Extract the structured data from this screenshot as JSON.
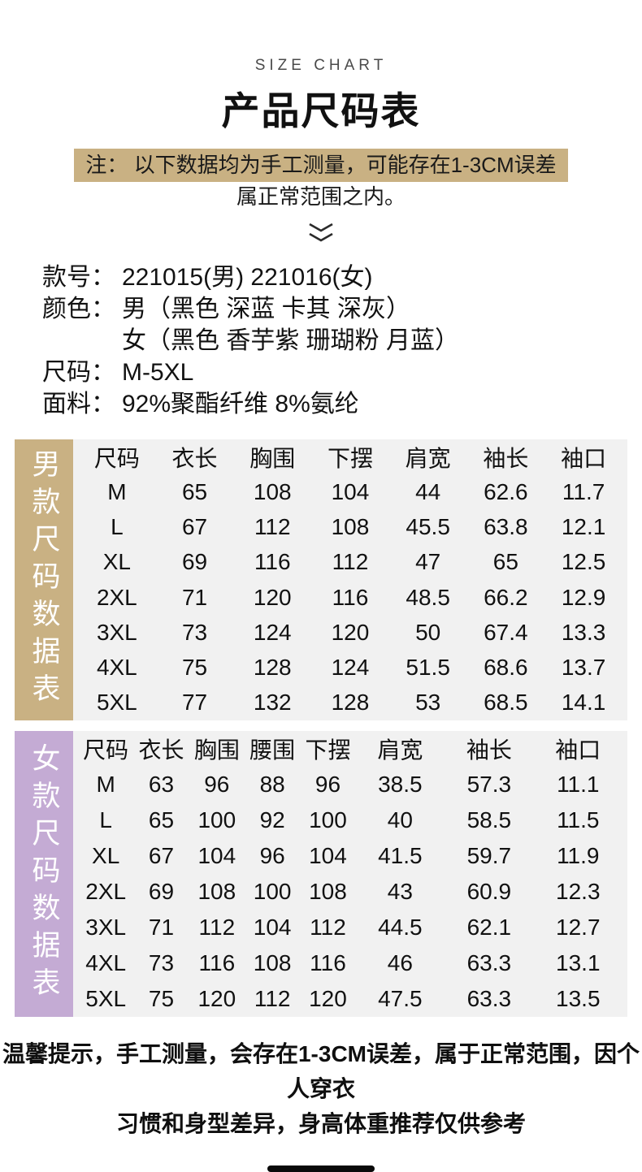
{
  "header": {
    "eyebrow": "SIZE CHART",
    "title": "产品尺码表",
    "note_line1": "注： 以下数据均为手工测量，可能存在1-3CM误差",
    "note_line2": "属正常范围之内。"
  },
  "product_info": {
    "lines": [
      {
        "label": "款号：",
        "value": "221015(男) 221016(女)"
      },
      {
        "label": "颜色：",
        "value": "男（黑色 深蓝 卡其 深灰）"
      },
      {
        "label": "",
        "value": "女（黑色 香芋紫 珊瑚粉 月蓝）"
      },
      {
        "label": "尺码：",
        "value": "M-5XL"
      },
      {
        "label": "面料：",
        "value": "92%聚酯纤维 8%氨纶"
      }
    ]
  },
  "men_table": {
    "side_label": "男款尺码数据表",
    "headers": [
      "尺码",
      "衣长",
      "胸围",
      "下摆",
      "肩宽",
      "袖长",
      "袖口"
    ],
    "rows": [
      [
        "M",
        "65",
        "108",
        "104",
        "44",
        "62.6",
        "11.7"
      ],
      [
        "L",
        "67",
        "112",
        "108",
        "45.5",
        "63.8",
        "12.1"
      ],
      [
        "XL",
        "69",
        "116",
        "112",
        "47",
        "65",
        "12.5"
      ],
      [
        "2XL",
        "71",
        "120",
        "116",
        "48.5",
        "66.2",
        "12.9"
      ],
      [
        "3XL",
        "73",
        "124",
        "120",
        "50",
        "67.4",
        "13.3"
      ],
      [
        "4XL",
        "75",
        "128",
        "124",
        "51.5",
        "68.6",
        "13.7"
      ],
      [
        "5XL",
        "77",
        "132",
        "128",
        "53",
        "68.5",
        "14.1"
      ]
    ]
  },
  "women_table": {
    "side_label": "女款尺码数据表",
    "headers": [
      "尺码",
      "衣长",
      "胸围",
      "腰围",
      "下摆",
      "肩宽",
      "袖长",
      "袖口"
    ],
    "rows": [
      [
        "M",
        "63",
        "96",
        "88",
        "96",
        "38.5",
        "57.3",
        "11.1"
      ],
      [
        "L",
        "65",
        "100",
        "92",
        "100",
        "40",
        "58.5",
        "11.5"
      ],
      [
        "XL",
        "67",
        "104",
        "96",
        "104",
        "41.5",
        "59.7",
        "11.9"
      ],
      [
        "2XL",
        "69",
        "108",
        "100",
        "108",
        "43",
        "60.9",
        "12.3"
      ],
      [
        "3XL",
        "71",
        "112",
        "104",
        "112",
        "44.5",
        "62.1",
        "12.7"
      ],
      [
        "4XL",
        "73",
        "116",
        "108",
        "116",
        "46",
        "63.3",
        "13.1"
      ],
      [
        "5XL",
        "75",
        "120",
        "112",
        "120",
        "47.5",
        "63.3",
        "13.5"
      ]
    ]
  },
  "footer": {
    "note_line1": "温馨提示，手工测量，会存在1-3CM误差，属于正常范围，因个人穿衣",
    "note_line2": "习惯和身型差异，身高体重推荐仅供参考"
  },
  "colors": {
    "accent_tan": "#c9b183",
    "accent_purple": "#c4abd4",
    "table_background": "#f1f1f1",
    "text": "#111111"
  }
}
